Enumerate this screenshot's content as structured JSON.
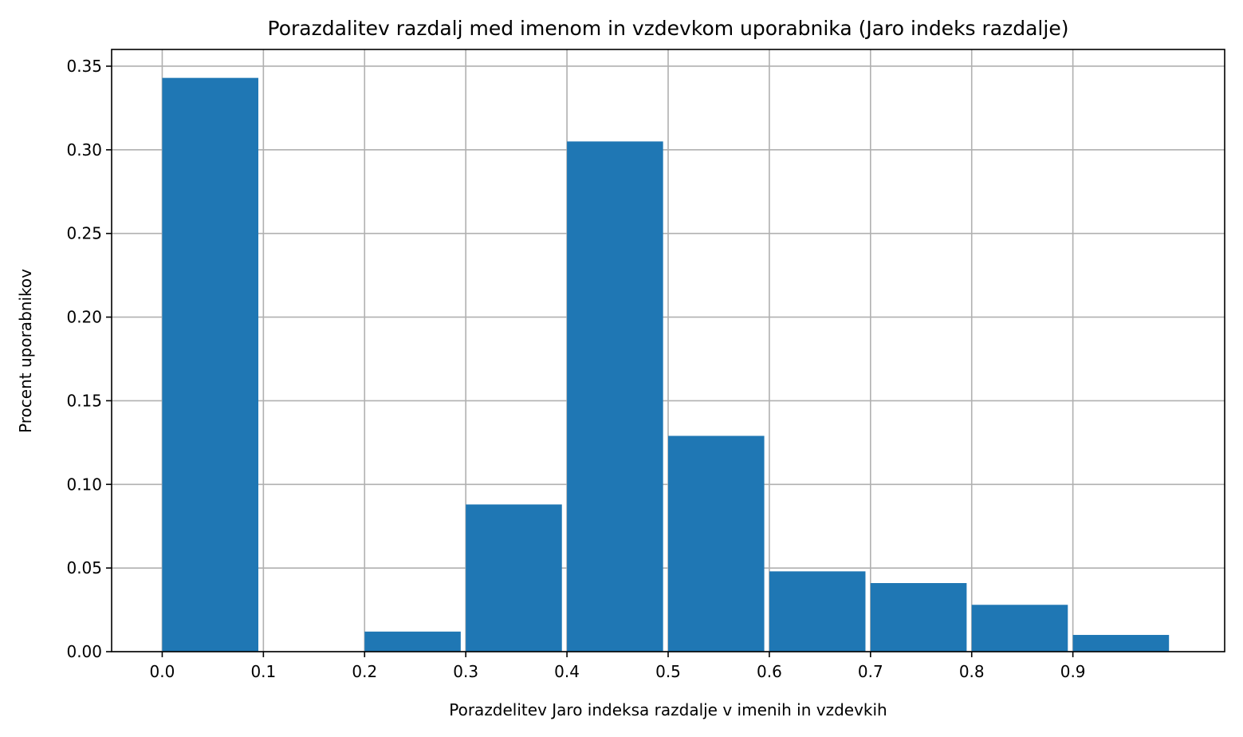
{
  "chart_data": {
    "type": "bar",
    "title": "Porazdalitev razdalj med imenom in vzdevkom uporabnika (Jaro indeks razdalje)",
    "xlabel": "Porazdelitev Jaro indeksa razdalje v imenih in vzdevkih",
    "ylabel": "Procent uporabnikov",
    "bin_edges": [
      0.0,
      0.1,
      0.2,
      0.3,
      0.4,
      0.5,
      0.6,
      0.7,
      0.8,
      0.9,
      1.0
    ],
    "bar_width_fraction": 0.95,
    "values": [
      0.343,
      0.0,
      0.012,
      0.088,
      0.305,
      0.129,
      0.048,
      0.041,
      0.028,
      0.01
    ],
    "xlim": [
      -0.05,
      1.05
    ],
    "ylim": [
      0.0,
      0.36
    ],
    "xticks": [
      0.0,
      0.1,
      0.2,
      0.3,
      0.4,
      0.5,
      0.6,
      0.7,
      0.8,
      0.9
    ],
    "xtick_labels": [
      "0.0",
      "0.1",
      "0.2",
      "0.3",
      "0.4",
      "0.5",
      "0.6",
      "0.7",
      "0.8",
      "0.9"
    ],
    "yticks": [
      0.0,
      0.05,
      0.1,
      0.15,
      0.2,
      0.25,
      0.3,
      0.35
    ],
    "ytick_labels": [
      "0.00",
      "0.05",
      "0.10",
      "0.15",
      "0.20",
      "0.25",
      "0.30",
      "0.35"
    ],
    "grid": true,
    "bar_color": "#1f77b4",
    "grid_color": "#b0b0b0"
  }
}
